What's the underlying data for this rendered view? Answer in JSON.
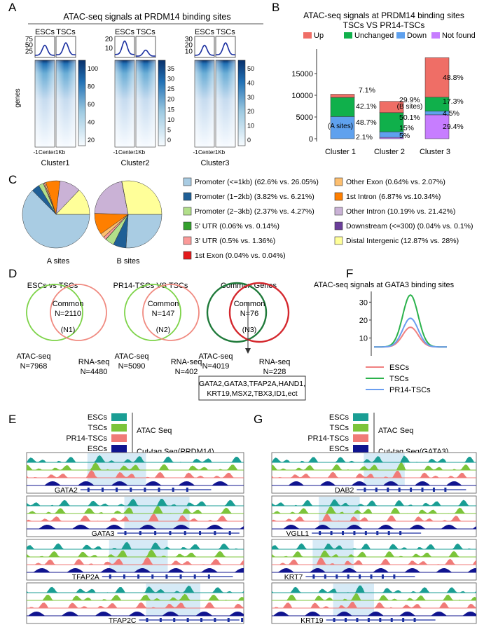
{
  "panelA": {
    "letter": "A",
    "title": "ATAC-seq signals at PRDM14 binding sites",
    "ylabel": "genes",
    "xticks": [
      "-1",
      "Center",
      "1Kb"
    ],
    "clusters": [
      {
        "name": "Cluster1",
        "labels": [
          "ESCs",
          "TSCs"
        ],
        "profile_ticks": [
          "75",
          "50",
          "25"
        ],
        "colorbar_ticks": [
          "100",
          "80",
          "60",
          "40",
          "20"
        ],
        "peaks": [
          50,
          60
        ]
      },
      {
        "name": "Cluster2",
        "labels": [
          "ESCs",
          "TSCs"
        ],
        "profile_ticks": [
          "20",
          "10"
        ],
        "colorbar_ticks": [
          "35",
          "30",
          "25",
          "20",
          "15",
          "10",
          "5",
          "0"
        ],
        "peaks": [
          18,
          8
        ]
      },
      {
        "name": "Cluster3",
        "labels": [
          "ESCs",
          "TSCs"
        ],
        "profile_ticks": [
          "30",
          "20",
          "10"
        ],
        "colorbar_ticks": [
          "50",
          "40",
          "30",
          "20",
          "10",
          "0"
        ],
        "peaks": [
          20,
          24
        ]
      }
    ]
  },
  "panelB": {
    "letter": "B",
    "title": "ATAC-seq signals at PRDM14 binding sites",
    "subtitle": "TSCs VS PR14-TSCs",
    "note_a": "(A sites)",
    "note_b": "(B sites)"
  },
  "panelC": {
    "letter": "C",
    "pie_labels": [
      "A sites",
      "B sites"
    ],
    "legend": [
      {
        "label": "Promoter (<=1kb) (62.6% vs. 26.05%)",
        "color": "#a9cce3"
      },
      {
        "label": "Promoter (1−2kb) (3.82% vs. 6.21%)",
        "color": "#1f5f96"
      },
      {
        "label": "Promoter (2−3kb) (2.37% vs. 4.27%)",
        "color": "#b2df8a"
      },
      {
        "label": "5' UTR (0.06% vs. 0.14%)",
        "color": "#33a02c"
      },
      {
        "label": "3' UTR (0.5% vs. 1.36%)",
        "color": "#fb9a99"
      },
      {
        "label": "1st Exon (0.04% vs. 0.04%)",
        "color": "#e31a1c"
      },
      {
        "label": "Other Exon (0.64% vs. 2.07%)",
        "color": "#fdbf6f"
      },
      {
        "label": "1st Intron (6.87% vs.10.34%)",
        "color": "#ff7f00"
      },
      {
        "label": "Other Intron (10.19% vs. 21.42%)",
        "color": "#cab2d6"
      },
      {
        "label": "Downstream (<=300) (0.04% vs. 0.1%)",
        "color": "#6a3d9a"
      },
      {
        "label": "Distal Intergenic (12.87% vs. 28%)",
        "color": "#ffff99"
      }
    ]
  },
  "panelD": {
    "letter": "D",
    "venns": [
      {
        "title": "ESCs vs TSCs",
        "common": "Common",
        "n_common": "N=2110",
        "tag": "(N1)",
        "left": "ATAC-seq",
        "left_n": "N=7968",
        "right": "RNA-seq",
        "right_n": "N=4480"
      },
      {
        "title": "PR14-TSCs VS TSCs",
        "common": "Common",
        "n_common": "N=147",
        "tag": "(N2)",
        "left": "ATAC-seq",
        "left_n": "N=5090",
        "right": "RNA-seq",
        "right_n": "N=402"
      },
      {
        "title": "Common Genes",
        "common": "Common",
        "n_common": "N=76",
        "tag": "(N3)",
        "left": "ATAC-seq",
        "left_n": "N=4019",
        "right": "RNA-seq",
        "right_n": "N=228"
      }
    ],
    "genes_line1": "GATA2,GATA3,TFAP2A,HAND1,",
    "genes_line2": "KRT19,MSX2,TBX3,ID1,ect"
  },
  "panelE": {
    "letter": "E",
    "legend": [
      {
        "label": "ESCs",
        "color": "#1a9e94"
      },
      {
        "label": "TSCs",
        "color": "#7cc43a"
      },
      {
        "label": "PR14-TSCs",
        "color": "#f07b78"
      },
      {
        "label": "ESCs",
        "color": "#10148f"
      }
    ],
    "atac_label": "ATAC Seq",
    "cut_label": "Cut-tag Seq(PRDM14)",
    "genes": [
      "GATA2",
      "GATA3",
      "TFAP2A",
      "TFAP2C"
    ]
  },
  "panelF": {
    "letter": "F",
    "title": "ATAC-seq signals at GATA3 binding sites",
    "yticks": [
      "30",
      "20",
      "10"
    ],
    "legend": [
      {
        "label": "ESCs",
        "color": "#f08080"
      },
      {
        "label": "TSCs",
        "color": "#2bb24c"
      },
      {
        "label": "PR14-TSCs",
        "color": "#6a9ef0"
      }
    ]
  },
  "panelG": {
    "letter": "G",
    "legend": [
      {
        "label": "ESCs",
        "color": "#1a9e94"
      },
      {
        "label": "TSCs",
        "color": "#7cc43a"
      },
      {
        "label": "PR14-TSCs",
        "color": "#f07b78"
      },
      {
        "label": "ESCs",
        "color": "#10148f"
      }
    ],
    "atac_label": "ATAC Seq",
    "cut_label": "Cut-tag Seq(GATA3)",
    "genes": [
      "DAB2",
      "VGLL1",
      "KRT7",
      "KRT19"
    ]
  },
  "chart_data": [
    {
      "type": "bar",
      "title": "ATAC-seq signals at PRDM14 binding sites",
      "subtitle": "TSCs VS PR14-TSCs",
      "categories": [
        "Cluster 1",
        "Cluster 2",
        "Cluster 3"
      ],
      "ylim": [
        0,
        20000
      ],
      "yticks": [
        0,
        5000,
        10000,
        15000
      ],
      "legend_position": "top",
      "series": [
        {
          "name": "Not found",
          "color": "#c77dff",
          "values": [
            0,
            300,
            5500
          ],
          "labels": [
            "",
            "5%",
            "29.4%"
          ]
        },
        {
          "name": "Down",
          "color": "#5fa1ee",
          "values": [
            5100,
            1300,
            850
          ],
          "labels": [
            "48.7%",
            "15%",
            "4.5%"
          ]
        },
        {
          "name": "Unchanged",
          "color": "#10b04b",
          "values": [
            4400,
            4400,
            3200
          ],
          "labels": [
            "42.1%",
            "50.1%",
            "17.3%"
          ]
        },
        {
          "name": "Up",
          "color": "#ef6e66",
          "values": [
            740,
            2600,
            9100
          ],
          "labels": [
            "7.1%",
            "29.9%",
            "48.8%"
          ]
        }
      ],
      "extra_labels": [
        "2.1%",
        "",
        ""
      ]
    },
    {
      "type": "pie",
      "title": "A sites",
      "categories": [
        "Promoter (<=1kb)",
        "Promoter (1−2kb)",
        "Promoter (2−3kb)",
        "5' UTR",
        "3' UTR",
        "1st Exon",
        "Other Exon",
        "1st Intron",
        "Other Intron",
        "Downstream (<=300)",
        "Distal Intergenic"
      ],
      "values": [
        62.6,
        3.82,
        2.37,
        0.06,
        0.5,
        0.04,
        0.64,
        6.87,
        10.19,
        0.04,
        12.87
      ]
    },
    {
      "type": "pie",
      "title": "B sites",
      "categories": [
        "Promoter (<=1kb)",
        "Promoter (1−2kb)",
        "Promoter (2−3kb)",
        "5' UTR",
        "3' UTR",
        "1st Exon",
        "Other Exon",
        "1st Intron",
        "Other Intron",
        "Downstream (<=300)",
        "Distal Intergenic"
      ],
      "values": [
        26.05,
        6.21,
        4.27,
        0.14,
        1.36,
        0.04,
        2.07,
        10.34,
        21.42,
        0.1,
        28
      ]
    },
    {
      "type": "line",
      "title": "ATAC-seq signals at GATA3 binding sites",
      "ylim": [
        0,
        36
      ],
      "series": [
        {
          "name": "ESCs",
          "peak": 16,
          "baseline": 5
        },
        {
          "name": "TSCs",
          "peak": 34,
          "baseline": 5
        },
        {
          "name": "PR14-TSCs",
          "peak": 21,
          "baseline": 5
        }
      ]
    }
  ]
}
